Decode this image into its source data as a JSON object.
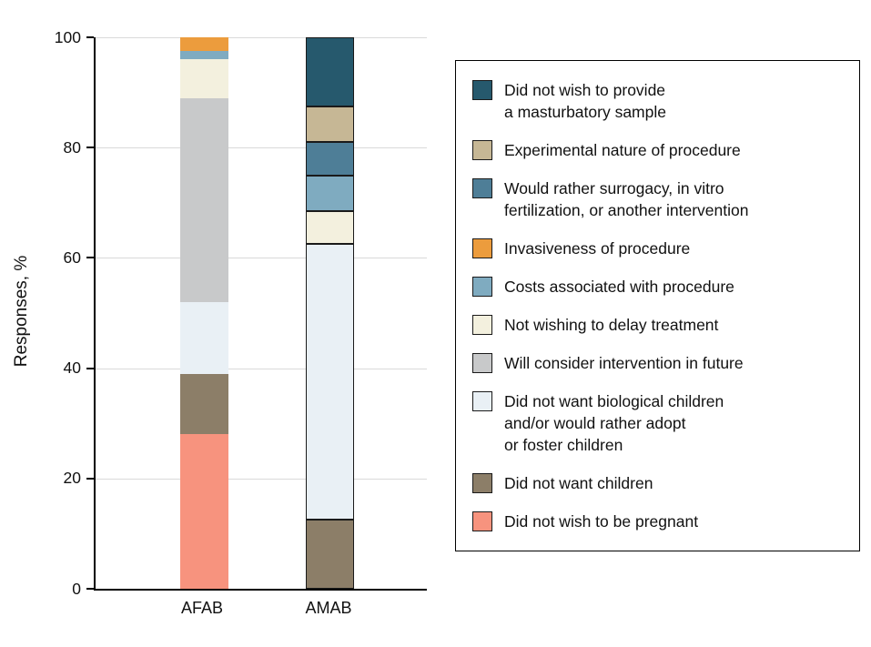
{
  "figure": {
    "ylabel": "Responses, %",
    "y_ticks": [
      0,
      20,
      40,
      60,
      80,
      100
    ]
  },
  "chart_data": {
    "type": "bar",
    "stacked": true,
    "title": "",
    "xlabel": "",
    "ylabel": "Responses, %",
    "ylim": [
      0,
      100
    ],
    "grid": true,
    "legend_position": "right",
    "categories": [
      "AFAB",
      "AMAB"
    ],
    "series": [
      {
        "name": "Did not wish to be pregnant",
        "color": "#f7937e",
        "values": [
          28,
          0
        ]
      },
      {
        "name": "Did not want children",
        "color": "#8c7e68",
        "values": [
          11,
          12.5
        ]
      },
      {
        "name": "Did not want biological children and/or would rather adopt or foster children",
        "color": "#e9f0f5",
        "values": [
          13,
          50
        ]
      },
      {
        "name": "Will consider intervention in future",
        "color": "#c8c9ca",
        "values": [
          37,
          0
        ]
      },
      {
        "name": "Not wishing to delay treatment",
        "color": "#f3f0de",
        "values": [
          7,
          6
        ]
      },
      {
        "name": "Costs associated with procedure",
        "color": "#7fabc0",
        "values": [
          1.5,
          6.5
        ]
      },
      {
        "name": "Invasiveness of procedure",
        "color": "#ec9c3d",
        "values": [
          2.5,
          0
        ]
      },
      {
        "name": "Would rather surrogacy, in vitro fertilization, or another intervention",
        "color": "#4e7e97",
        "values": [
          0,
          6
        ]
      },
      {
        "name": "Experimental nature of procedure",
        "color": "#c6b795",
        "values": [
          0,
          6.5
        ]
      },
      {
        "name": "Did not wish to provide a masturbatory sample",
        "color": "#26596d",
        "values": [
          0,
          12.5
        ]
      }
    ]
  },
  "legend": {
    "items": [
      {
        "color": "#26596d",
        "lines": [
          "Did not wish to provide",
          "a masturbatory sample"
        ]
      },
      {
        "color": "#c6b795",
        "lines": [
          "Experimental nature of procedure"
        ]
      },
      {
        "color": "#4e7e97",
        "lines": [
          "Would rather surrogacy, in vitro",
          "fertilization, or another intervention"
        ]
      },
      {
        "color": "#ec9c3d",
        "lines": [
          "Invasiveness of procedure"
        ]
      },
      {
        "color": "#7fabc0",
        "lines": [
          "Costs associated with procedure"
        ]
      },
      {
        "color": "#f3f0de",
        "lines": [
          "Not wishing to delay treatment"
        ]
      },
      {
        "color": "#c8c9ca",
        "lines": [
          "Will consider intervention in future"
        ]
      },
      {
        "color": "#e9f0f5",
        "lines": [
          "Did not want biological children",
          "and/or would rather adopt",
          "or foster children"
        ]
      },
      {
        "color": "#8c7e68",
        "lines": [
          "Did not want children"
        ]
      },
      {
        "color": "#f7937e",
        "lines": [
          "Did not wish to be pregnant"
        ]
      }
    ]
  }
}
